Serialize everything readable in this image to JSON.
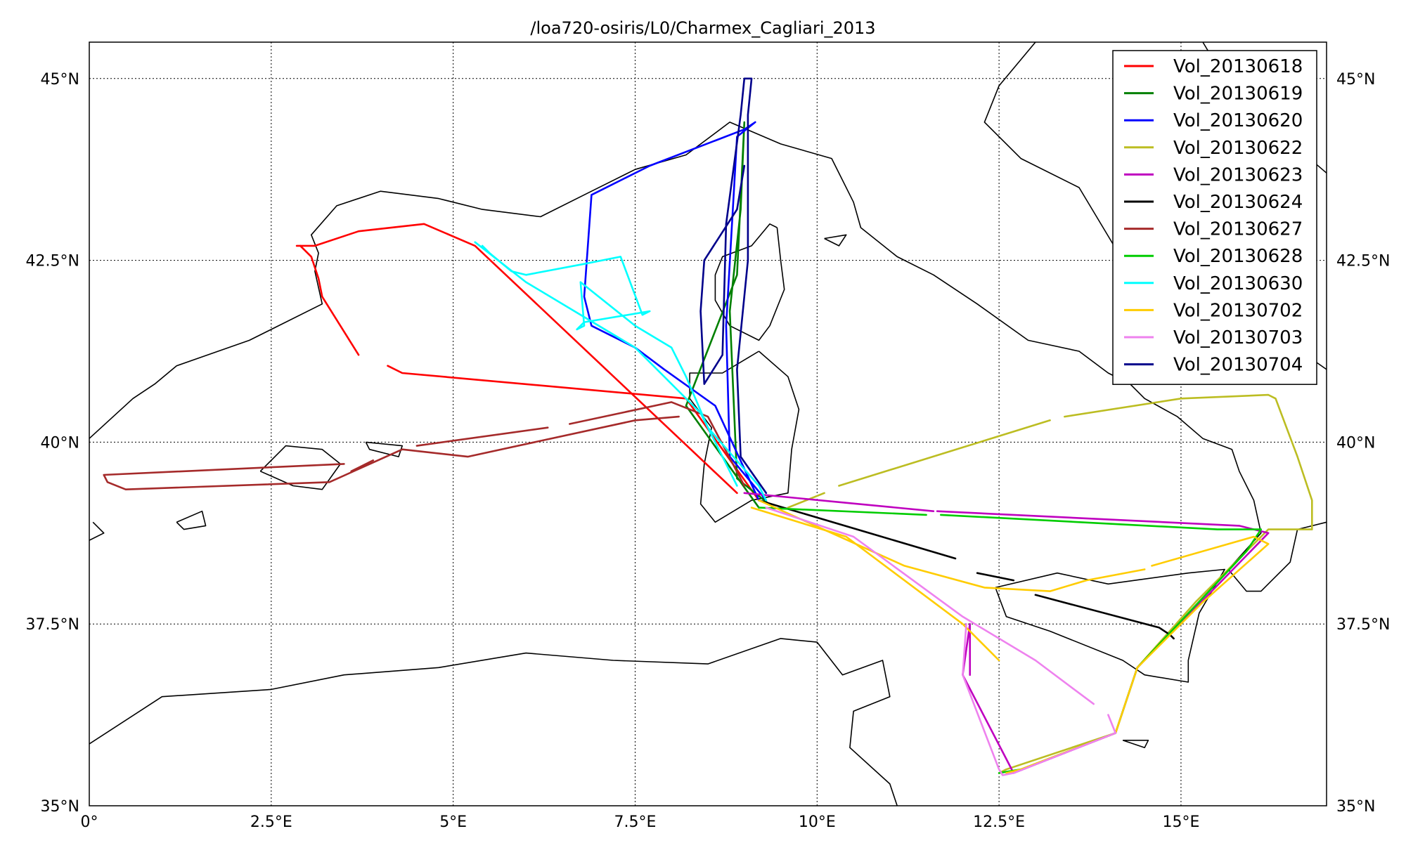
{
  "title": "/loa720-osiris/L0/Charmex_Cagliari_2013",
  "axes": {
    "x_ticks": [
      "0°",
      "2.5°E",
      "5°E",
      "7.5°E",
      "10°E",
      "12.5°E",
      "15°E"
    ],
    "y_ticks": [
      "35°N",
      "37.5°N",
      "40°N",
      "42.5°N",
      "45°N"
    ]
  },
  "chart_data": {
    "type": "map-tracks",
    "xlim": [
      0,
      17
    ],
    "ylim": [
      35,
      45.5
    ],
    "grid": true,
    "legend_position": "top-right",
    "series": [
      {
        "name": "Vol_20130618",
        "color": "#ff0000",
        "segments": [
          [
            [
              2.9,
              42.7
            ],
            [
              3.05,
              42.55
            ],
            [
              3.15,
              42.25
            ],
            [
              3.2,
              42.0
            ],
            [
              3.7,
              41.2
            ]
          ],
          [
            [
              4.1,
              41.05
            ],
            [
              4.3,
              40.95
            ],
            [
              8.2,
              40.6
            ],
            [
              9.2,
              39.2
            ]
          ],
          [
            [
              2.85,
              42.7
            ],
            [
              3.1,
              42.7
            ],
            [
              3.7,
              42.9
            ],
            [
              4.6,
              43.0
            ],
            [
              5.3,
              42.7
            ],
            [
              8.9,
              39.3
            ]
          ]
        ]
      },
      {
        "name": "Vol_20130619",
        "color": "#008000",
        "segments": [
          [
            [
              9.2,
              39.1
            ],
            [
              8.2,
              40.5
            ],
            [
              8.9,
              42.3
            ],
            [
              9.0,
              44.4
            ],
            [
              8.95,
              43.2
            ],
            [
              8.8,
              41.8
            ],
            [
              8.9,
              39.5
            ],
            [
              9.4,
              39.1
            ]
          ]
        ]
      },
      {
        "name": "Vol_20130620",
        "color": "#0000ff",
        "segments": [
          [
            [
              9.2,
              39.2
            ],
            [
              8.6,
              40.5
            ],
            [
              7.9,
              41.0
            ],
            [
              7.5,
              41.3
            ],
            [
              6.9,
              41.6
            ],
            [
              6.8,
              42.0
            ],
            [
              6.9,
              43.4
            ],
            [
              7.7,
              43.8
            ],
            [
              9.0,
              44.3
            ],
            [
              9.15,
              44.4
            ],
            [
              8.9,
              44.2
            ],
            [
              8.75,
              41.6
            ],
            [
              8.8,
              39.8
            ],
            [
              9.3,
              39.2
            ]
          ]
        ]
      },
      {
        "name": "Vol_20130622",
        "color": "#bcbd22",
        "segments": [
          [
            [
              9.6,
              39.1
            ],
            [
              10.1,
              39.3
            ]
          ],
          [
            [
              10.3,
              39.4
            ],
            [
              13.2,
              40.3
            ]
          ],
          [
            [
              13.4,
              40.35
            ],
            [
              15.0,
              40.6
            ],
            [
              16.2,
              40.65
            ],
            [
              16.3,
              40.6
            ],
            [
              16.6,
              39.8
            ],
            [
              16.8,
              39.2
            ],
            [
              16.8,
              38.8
            ],
            [
              16.2,
              38.8
            ],
            [
              15.2,
              37.8
            ],
            [
              14.4,
              36.9
            ],
            [
              14.1,
              36.0
            ],
            [
              12.6,
              35.5
            ],
            [
              12.5,
              35.45
            ]
          ]
        ]
      },
      {
        "name": "Vol_20130623",
        "color": "#bf00bf",
        "segments": [
          [
            [
              9.0,
              39.3
            ],
            [
              11.6,
              39.05
            ]
          ],
          [
            [
              11.65,
              39.05
            ],
            [
              15.8,
              38.85
            ],
            [
              16.2,
              38.75
            ],
            [
              14.4,
              36.9
            ],
            [
              14.1,
              36.0
            ],
            [
              12.7,
              35.45
            ],
            [
              12.0,
              36.8
            ],
            [
              12.1,
              37.5
            ],
            [
              12.1,
              36.8
            ]
          ]
        ]
      },
      {
        "name": "Vol_20130624",
        "color": "#000000",
        "segments": [
          [
            [
              9.2,
              39.2
            ],
            [
              11.9,
              38.4
            ]
          ],
          [
            [
              12.2,
              38.2
            ],
            [
              12.7,
              38.1
            ]
          ],
          [
            [
              13.0,
              37.9
            ],
            [
              14.7,
              37.45
            ],
            [
              14.85,
              37.35
            ],
            [
              14.9,
              37.3
            ]
          ]
        ]
      },
      {
        "name": "Vol_20130627",
        "color": "#a52a2a",
        "segments": [
          [
            [
              8.1,
              40.35
            ],
            [
              7.5,
              40.3
            ],
            [
              5.2,
              39.8
            ],
            [
              4.3,
              39.9
            ],
            [
              3.3,
              39.45
            ],
            [
              0.5,
              39.35
            ],
            [
              0.25,
              39.45
            ],
            [
              0.2,
              39.55
            ],
            [
              3.5,
              39.7
            ]
          ],
          [
            [
              3.6,
              39.6
            ],
            [
              3.9,
              39.75
            ]
          ],
          [
            [
              4.5,
              39.95
            ],
            [
              6.3,
              40.2
            ]
          ],
          [
            [
              6.6,
              40.25
            ],
            [
              8.0,
              40.55
            ],
            [
              8.5,
              40.35
            ],
            [
              9.0,
              39.4
            ]
          ]
        ]
      },
      {
        "name": "Vol_20130628",
        "color": "#00cc00",
        "segments": [
          [
            [
              9.2,
              39.1
            ],
            [
              11.5,
              39.0
            ]
          ],
          [
            [
              11.7,
              39.0
            ],
            [
              15.5,
              38.8
            ],
            [
              16.1,
              38.8
            ],
            [
              15.9,
              38.5
            ],
            [
              14.4,
              36.9
            ],
            [
              14.1,
              36.0
            ],
            [
              12.8,
              35.5
            ],
            [
              12.5,
              35.45
            ]
          ]
        ]
      },
      {
        "name": "Vol_20130630",
        "color": "#00ffff",
        "segments": [
          [
            [
              5.4,
              42.7
            ],
            [
              5.5,
              42.6
            ],
            [
              5.8,
              42.35
            ],
            [
              6.0,
              42.3
            ],
            [
              6.8,
              42.45
            ],
            [
              7.3,
              42.55
            ],
            [
              7.6,
              41.75
            ],
            [
              7.7,
              41.8
            ],
            [
              6.8,
              41.65
            ],
            [
              6.7,
              41.55
            ],
            [
              6.8,
              41.6
            ],
            [
              6.75,
              42.2
            ],
            [
              7.5,
              41.6
            ],
            [
              8.0,
              41.3
            ],
            [
              8.2,
              40.9
            ],
            [
              8.5,
              40.2
            ],
            [
              9.2,
              39.4
            ],
            [
              9.3,
              39.2
            ]
          ],
          [
            [
              5.3,
              42.75
            ],
            [
              6.0,
              42.2
            ],
            [
              7.5,
              41.3
            ],
            [
              8.4,
              40.4
            ],
            [
              8.9,
              39.4
            ]
          ]
        ]
      },
      {
        "name": "Vol_20130702",
        "color": "#ffcc00",
        "segments": [
          [
            [
              9.2,
              39.2
            ],
            [
              11.2,
              38.3
            ],
            [
              12.3,
              38.0
            ],
            [
              13.2,
              37.95
            ],
            [
              13.7,
              38.1
            ],
            [
              14.5,
              38.25
            ]
          ],
          [
            [
              14.6,
              38.3
            ],
            [
              16.0,
              38.7
            ],
            [
              16.2,
              38.6
            ],
            [
              15.3,
              37.8
            ],
            [
              14.4,
              36.9
            ],
            [
              14.1,
              36.0
            ],
            [
              12.8,
              35.5
            ],
            [
              12.6,
              35.45
            ]
          ],
          [
            [
              9.1,
              39.1
            ],
            [
              10.4,
              38.7
            ],
            [
              12.0,
              37.5
            ],
            [
              12.5,
              37.0
            ]
          ]
        ]
      },
      {
        "name": "Vol_20130703",
        "color": "#ee82ee",
        "segments": [
          [
            [
              9.3,
              39.1
            ],
            [
              10.5,
              38.7
            ],
            [
              12.0,
              37.6
            ],
            [
              13.0,
              37.0
            ],
            [
              13.8,
              36.4
            ]
          ],
          [
            [
              14.0,
              36.25
            ],
            [
              14.1,
              36.0
            ],
            [
              12.7,
              35.45
            ],
            [
              12.55,
              35.42
            ],
            [
              12.5,
              35.5
            ],
            [
              12.0,
              36.8
            ],
            [
              12.05,
              37.5
            ]
          ]
        ]
      },
      {
        "name": "Vol_20130704",
        "color": "#00008b",
        "segments": [
          [
            [
              9.3,
              39.3
            ],
            [
              8.95,
              39.8
            ],
            [
              8.9,
              41.0
            ],
            [
              9.05,
              42.5
            ],
            [
              9.05,
              44.5
            ],
            [
              9.1,
              45.0
            ],
            [
              9.0,
              45.0
            ],
            [
              8.95,
              44.5
            ],
            [
              8.75,
              43.0
            ],
            [
              8.7,
              41.2
            ],
            [
              8.45,
              40.8
            ],
            [
              8.4,
              41.8
            ],
            [
              8.45,
              42.5
            ],
            [
              8.9,
              43.2
            ],
            [
              9.0,
              43.8
            ]
          ]
        ]
      }
    ]
  }
}
